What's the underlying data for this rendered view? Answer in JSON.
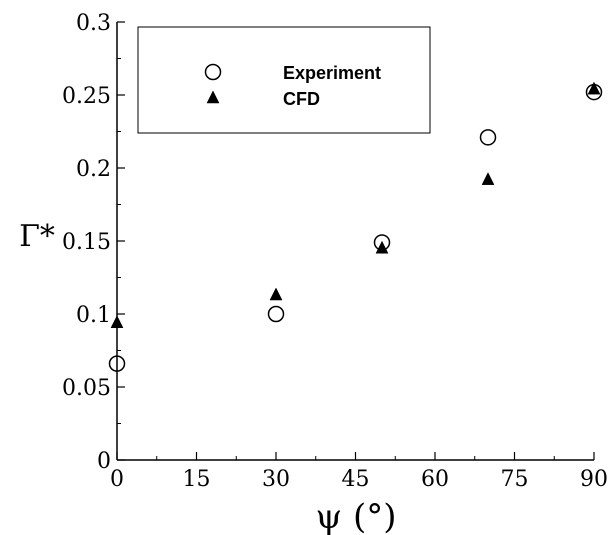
{
  "chart_data": {
    "type": "scatter",
    "xlabel": "ψ (°)",
    "ylabel": "Γ*",
    "xlim": [
      0,
      90
    ],
    "ylim": [
      0,
      0.3
    ],
    "x_ticks": [
      0,
      15,
      30,
      45,
      60,
      75,
      90
    ],
    "x_tick_labels": [
      "0",
      "15",
      "30",
      "45",
      "60",
      "75",
      "90"
    ],
    "y_ticks": [
      0,
      0.05,
      0.1,
      0.15,
      0.2,
      0.25,
      0.3
    ],
    "y_tick_labels": [
      "0",
      "0.05",
      "0.1",
      "0.15",
      "0.2",
      "0.25",
      "0.3"
    ],
    "grid": false,
    "legend_position": "top-left",
    "series": [
      {
        "name": "Experiment",
        "marker": "open-circle",
        "color": "#000000",
        "x": [
          0,
          30,
          50,
          70,
          90
        ],
        "y": [
          0.066,
          0.1,
          0.149,
          0.221,
          0.252
        ]
      },
      {
        "name": "CFD",
        "marker": "filled-triangle",
        "color": "#000000",
        "x": [
          0,
          30,
          50,
          70,
          90
        ],
        "y": [
          0.094,
          0.113,
          0.145,
          0.192,
          0.254
        ]
      }
    ]
  }
}
